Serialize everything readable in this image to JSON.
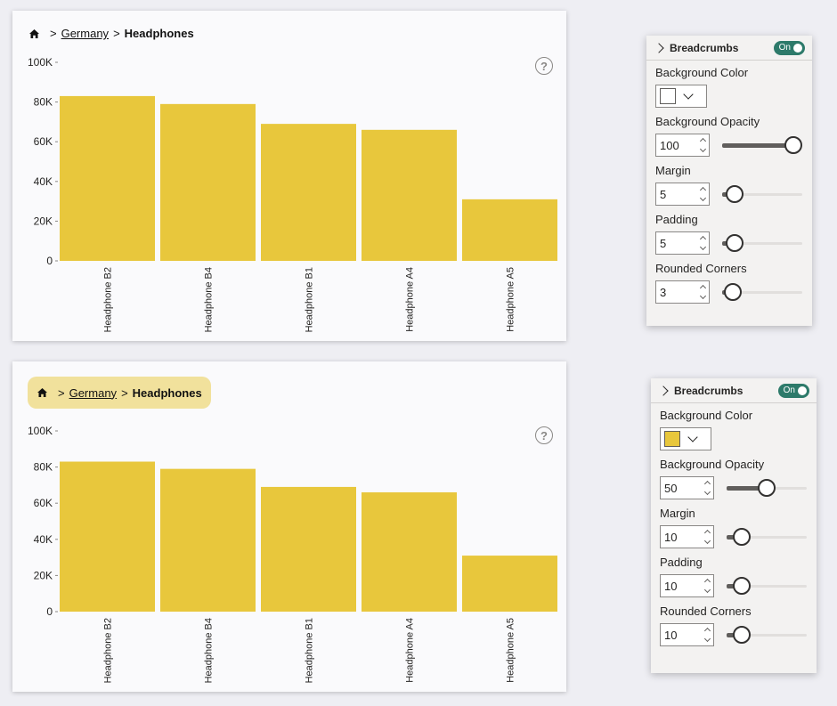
{
  "colors": {
    "bar": "#e8c73c",
    "crumb_background": "#e8c73c",
    "toggle_on": "#2d7a6a"
  },
  "visuals": [
    {
      "breadcrumb": {
        "home_icon": "home-icon",
        "separator": ">",
        "level": "Germany",
        "current": "Headphones",
        "background": "none"
      },
      "help_icon": "?",
      "chart_data": {
        "type": "bar",
        "categories": [
          "Headphone B2",
          "Headphone B4",
          "Headphone B1",
          "Headphone A4",
          "Headphone A5"
        ],
        "values": [
          83000,
          79000,
          69000,
          66000,
          31000
        ],
        "yticks": [
          "0",
          "20K",
          "40K",
          "60K",
          "80K",
          "100K"
        ],
        "ylim": [
          0,
          100000
        ],
        "grid": false
      },
      "format_panel": {
        "title": "Breadcrumbs",
        "toggle": "On",
        "background_color": {
          "label": "Background Color",
          "value": "#ffffff"
        },
        "background_opacity": {
          "label": "Background Opacity",
          "value": "100",
          "slider_fraction": 1.0
        },
        "margin": {
          "label": "Margin",
          "value": "5",
          "slider_fraction": 0.05
        },
        "padding": {
          "label": "Padding",
          "value": "5",
          "slider_fraction": 0.05
        },
        "rounded_corners": {
          "label": "Rounded Corners",
          "value": "3",
          "slider_fraction": 0.03
        }
      }
    },
    {
      "breadcrumb": {
        "home_icon": "home-icon",
        "separator": ">",
        "level": "Germany",
        "current": "Headphones",
        "background": "#e8c73c at 50% opacity"
      },
      "help_icon": "?",
      "chart_data": {
        "type": "bar",
        "categories": [
          "Headphone B2",
          "Headphone B4",
          "Headphone B1",
          "Headphone A4",
          "Headphone A5"
        ],
        "values": [
          83000,
          79000,
          69000,
          66000,
          31000
        ],
        "yticks": [
          "0",
          "20K",
          "40K",
          "60K",
          "80K",
          "100K"
        ],
        "ylim": [
          0,
          100000
        ],
        "grid": false
      },
      "format_panel": {
        "title": "Breadcrumbs",
        "toggle": "On",
        "background_color": {
          "label": "Background Color",
          "value": "#e8c73c"
        },
        "background_opacity": {
          "label": "Background Opacity",
          "value": "50",
          "slider_fraction": 0.5
        },
        "margin": {
          "label": "Margin",
          "value": "10",
          "slider_fraction": 0.1
        },
        "padding": {
          "label": "Padding",
          "value": "10",
          "slider_fraction": 0.1
        },
        "rounded_corners": {
          "label": "Rounded Corners",
          "value": "10",
          "slider_fraction": 0.1
        }
      }
    }
  ]
}
